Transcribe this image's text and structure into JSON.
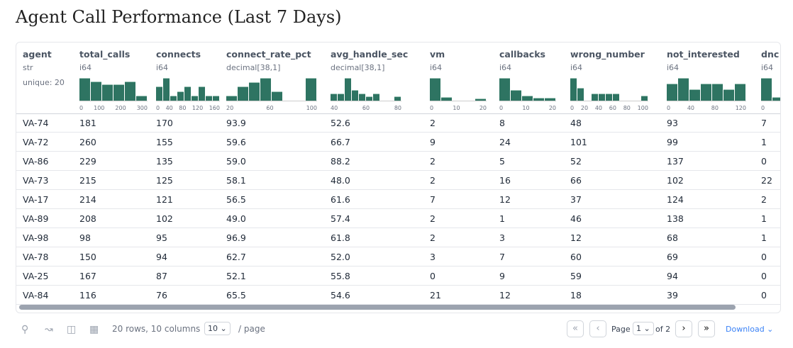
{
  "title": "Agent Call Performance (Last 7 Days)",
  "columns": [
    {
      "name": "agent",
      "type": "str",
      "unique": "unique: 20"
    },
    {
      "name": "total_calls",
      "type": "i64",
      "hist": [
        1,
        0.85,
        0.7,
        0.7,
        0.85,
        0.2
      ],
      "ticks": [
        "0",
        "100",
        "200",
        "300"
      ]
    },
    {
      "name": "connects",
      "type": "i64",
      "hist": [
        0.6,
        1,
        0.2,
        0.4,
        0.6,
        0.2,
        0.6,
        0.2,
        0.2
      ],
      "ticks": [
        "0",
        "40",
        "80",
        "120",
        "160"
      ]
    },
    {
      "name": "connect_rate_pct",
      "type": "decimal[38,1]",
      "hist": [
        0.2,
        0.6,
        0.8,
        1,
        0.4,
        0,
        0,
        1
      ],
      "ticks": [
        "20",
        "60",
        "100"
      ]
    },
    {
      "name": "avg_handle_sec",
      "type": "decimal[38,1]",
      "hist": [
        0.3,
        0.3,
        1,
        0.45,
        0.3,
        0.15,
        0.3,
        0,
        0,
        0.15
      ],
      "ticks": [
        "40",
        "60",
        "80"
      ]
    },
    {
      "name": "vm",
      "type": "i64",
      "hist": [
        1,
        0.12,
        0,
        0,
        0.06
      ],
      "ticks": [
        "0",
        "10",
        "20"
      ]
    },
    {
      "name": "callbacks",
      "type": "i64",
      "hist": [
        1,
        0.45,
        0.2,
        0.1,
        0.1
      ],
      "ticks": [
        "0",
        "10",
        "20"
      ]
    },
    {
      "name": "wrong_number",
      "type": "i64",
      "hist": [
        1,
        0.55,
        0,
        0.3,
        0.3,
        0.3,
        0.3,
        0,
        0,
        0,
        0.2
      ],
      "ticks": [
        "0",
        "20",
        "40",
        "60",
        "80",
        "100"
      ]
    },
    {
      "name": "not_interested",
      "type": "i64",
      "hist": [
        0.75,
        1,
        0.5,
        0.75,
        0.75,
        0.5,
        0.75
      ],
      "ticks": [
        "0",
        "40",
        "80",
        "120"
      ]
    },
    {
      "name": "dnc",
      "type": "i64",
      "hist": [
        1,
        0.12
      ],
      "ticks": [
        "0"
      ]
    }
  ],
  "rows": [
    [
      "VA-74",
      "181",
      "170",
      "93.9",
      "52.6",
      "2",
      "8",
      "48",
      "93",
      "7"
    ],
    [
      "VA-72",
      "260",
      "155",
      "59.6",
      "66.7",
      "9",
      "24",
      "101",
      "99",
      "1"
    ],
    [
      "VA-86",
      "229",
      "135",
      "59.0",
      "88.2",
      "2",
      "5",
      "52",
      "137",
      "0"
    ],
    [
      "VA-73",
      "215",
      "125",
      "58.1",
      "48.0",
      "2",
      "16",
      "66",
      "102",
      "22"
    ],
    [
      "VA-17",
      "214",
      "121",
      "56.5",
      "61.6",
      "7",
      "12",
      "37",
      "124",
      "2"
    ],
    [
      "VA-89",
      "208",
      "102",
      "49.0",
      "57.4",
      "2",
      "1",
      "46",
      "138",
      "1"
    ],
    [
      "VA-98",
      "98",
      "95",
      "96.9",
      "61.8",
      "2",
      "3",
      "12",
      "68",
      "1"
    ],
    [
      "VA-78",
      "150",
      "94",
      "62.7",
      "52.0",
      "3",
      "7",
      "60",
      "69",
      "0"
    ],
    [
      "VA-25",
      "167",
      "87",
      "52.1",
      "55.8",
      "0",
      "9",
      "59",
      "94",
      "0"
    ],
    [
      "VA-84",
      "116",
      "76",
      "65.5",
      "54.6",
      "21",
      "12",
      "18",
      "39",
      "0"
    ]
  ],
  "footer": {
    "summary": "20 rows, 10 columns",
    "page_size": "10",
    "per_page": "/ page",
    "page_label": "Page",
    "page": "1",
    "of": "of 2",
    "download": "Download"
  },
  "colors": {
    "bar": "#2e7462",
    "accent": "#3b82f6"
  }
}
